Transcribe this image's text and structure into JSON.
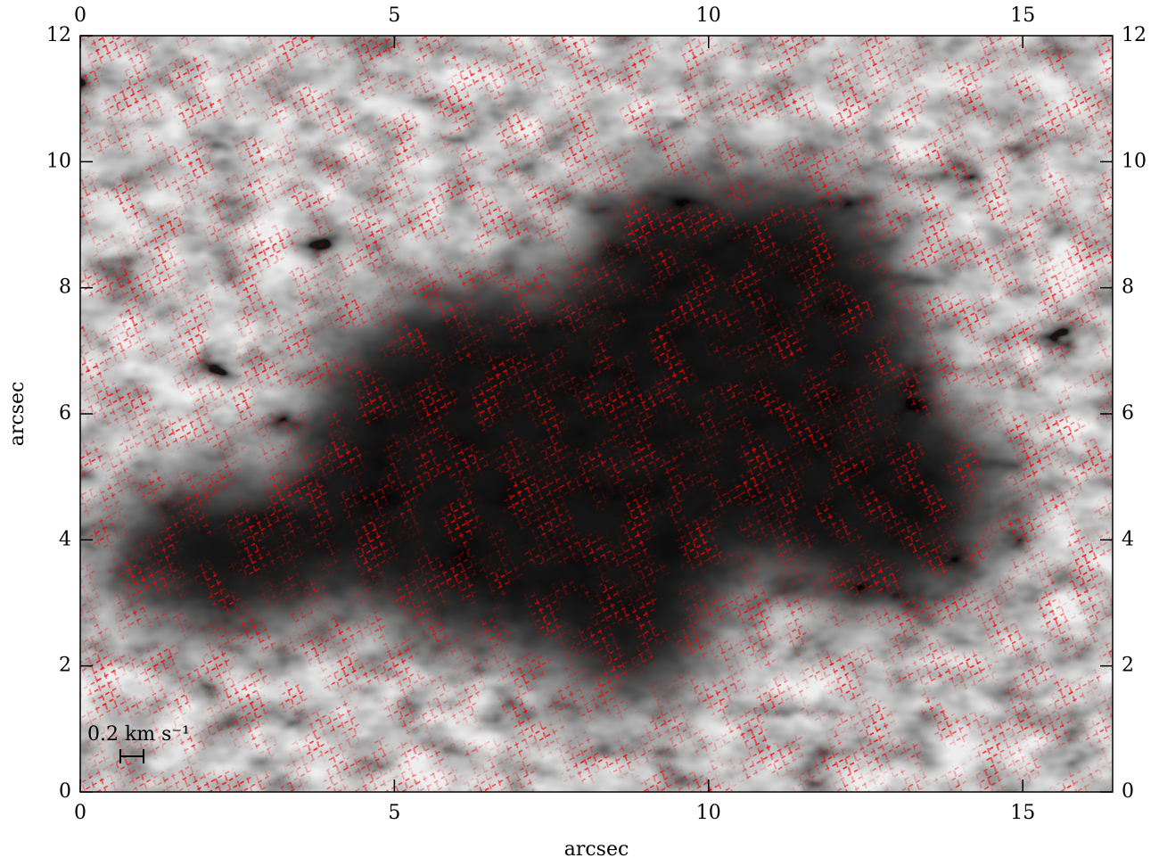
{
  "chart_data": {
    "type": "image",
    "xlabel": "arcsec",
    "ylabel": "arcsec",
    "xlim": [
      0,
      16.43
    ],
    "ylim": [
      0,
      12
    ],
    "xticks": [
      0,
      5,
      10,
      15
    ],
    "yticks": [
      0,
      2,
      4,
      6,
      8,
      10,
      12
    ],
    "mirror_ticks": true,
    "annotation": "0.2 km s⁻¹",
    "vector_color": "#ff0000"
  }
}
